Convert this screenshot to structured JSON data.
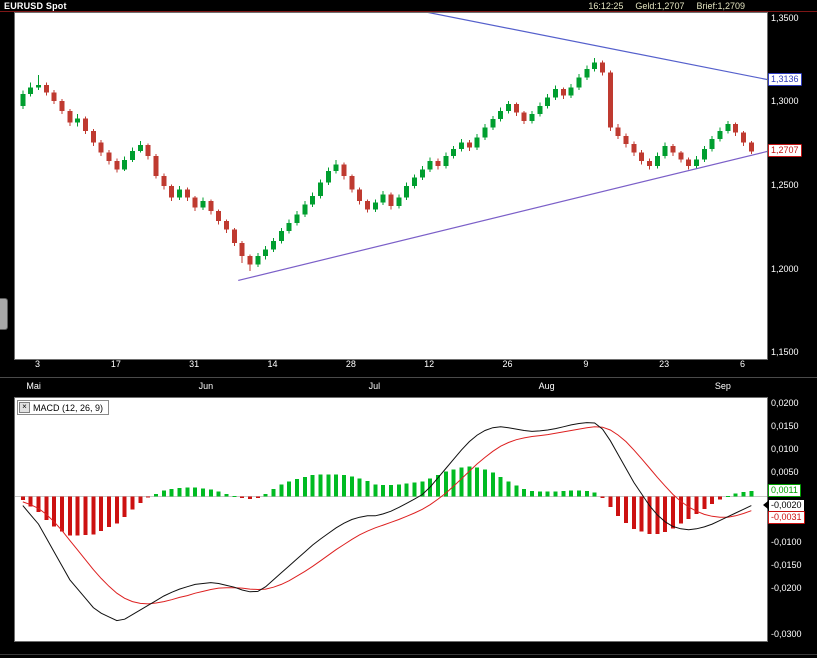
{
  "titlebar": {
    "symbol": "EURUSD Spot",
    "time": "16:12:25",
    "bid_label": "Geld:",
    "bid": "1,2707",
    "ask_label": "Brief:",
    "ask": "1,2709"
  },
  "indicator_box": {
    "close_glyph": "×"
  },
  "colors": {
    "candle_up": "#009e2f",
    "candle_down": "#bf3a30",
    "hist_up": "#00bb22",
    "hist_down": "#cc1111",
    "macd_line": "#101010",
    "signal_line": "#dd2020",
    "zero_line": "#c8c8c8",
    "axis_text": "#ffffff"
  },
  "chart_data": [
    {
      "type": "candlestick",
      "title": "EURUSD Spot",
      "y_axis": {
        "top": 1.3535,
        "bottom": 1.1465,
        "ticks": [
          {
            "v": 1.35,
            "label": "1,3500"
          },
          {
            "v": 1.3,
            "label": "1,3000"
          },
          {
            "v": 1.25,
            "label": "1,2500"
          },
          {
            "v": 1.2,
            "label": "1,2000"
          },
          {
            "v": 1.15,
            "label": "1,1500"
          }
        ]
      },
      "price_markers": [
        {
          "v": 1.3136,
          "label": "1,3136",
          "color": "#2e3bbf"
        },
        {
          "v": 1.2707,
          "label": "1,2707",
          "color": "#c41414"
        }
      ],
      "x_ticks": [
        {
          "i": 2,
          "label": "3"
        },
        {
          "i": 12,
          "label": "17"
        },
        {
          "i": 22,
          "label": "31"
        },
        {
          "i": 32,
          "label": "14"
        },
        {
          "i": 42,
          "label": "28"
        },
        {
          "i": 52,
          "label": "12"
        },
        {
          "i": 62,
          "label": "26"
        },
        {
          "i": 72,
          "label": "9"
        },
        {
          "i": 82,
          "label": "23"
        },
        {
          "i": 92,
          "label": "6"
        }
      ],
      "months": [
        {
          "i": 1.5,
          "label": "Mai"
        },
        {
          "i": 23.5,
          "label": "Jun"
        },
        {
          "i": 45,
          "label": "Jul"
        },
        {
          "i": 67,
          "label": "Aug"
        },
        {
          "i": 89.5,
          "label": "Sep"
        }
      ],
      "trendlines": [
        {
          "from": {
            "d": 51,
            "v": 1.3545
          },
          "to": {
            "d": 96,
            "v": 1.3128
          },
          "color": "#5560cc"
        },
        {
          "from": {
            "d": 27.5,
            "v": 1.1935
          },
          "to": {
            "d": 96,
            "v": 1.2718
          },
          "color": "#7b5fc8"
        }
      ],
      "candles": [
        [
          1.298,
          1.307,
          1.296,
          1.305
        ],
        [
          1.305,
          1.312,
          1.3035,
          1.309
        ],
        [
          1.309,
          1.3165,
          1.3075,
          1.3105
        ],
        [
          1.3105,
          1.312,
          1.304,
          1.306
        ],
        [
          1.306,
          1.3075,
          1.299,
          1.301
        ],
        [
          1.301,
          1.302,
          1.293,
          1.295
        ],
        [
          1.295,
          1.296,
          1.286,
          1.288
        ],
        [
          1.288,
          1.293,
          1.2855,
          1.2905
        ],
        [
          1.2905,
          1.2915,
          1.281,
          1.283
        ],
        [
          1.283,
          1.284,
          1.274,
          1.276
        ],
        [
          1.276,
          1.2775,
          1.268,
          1.27
        ],
        [
          1.27,
          1.2715,
          1.263,
          1.265
        ],
        [
          1.265,
          1.2665,
          1.258,
          1.26
        ],
        [
          1.26,
          1.2675,
          1.259,
          1.2655
        ],
        [
          1.2655,
          1.273,
          1.2645,
          1.271
        ],
        [
          1.271,
          1.277,
          1.27,
          1.2745
        ],
        [
          1.2745,
          1.2755,
          1.266,
          1.268
        ],
        [
          1.268,
          1.269,
          1.2545,
          1.256
        ],
        [
          1.256,
          1.2575,
          1.248,
          1.25
        ],
        [
          1.25,
          1.251,
          1.241,
          1.243
        ],
        [
          1.243,
          1.25,
          1.2415,
          1.248
        ],
        [
          1.248,
          1.249,
          1.241,
          1.243
        ],
        [
          1.243,
          1.244,
          1.235,
          1.237
        ],
        [
          1.237,
          1.243,
          1.2355,
          1.241
        ],
        [
          1.241,
          1.242,
          1.233,
          1.235
        ],
        [
          1.235,
          1.236,
          1.227,
          1.229
        ],
        [
          1.229,
          1.23,
          1.222,
          1.224
        ],
        [
          1.224,
          1.225,
          1.214,
          1.216
        ],
        [
          1.216,
          1.217,
          1.204,
          1.208
        ],
        [
          1.208,
          1.209,
          1.199,
          1.203
        ],
        [
          1.203,
          1.21,
          1.2015,
          1.208
        ],
        [
          1.208,
          1.214,
          1.206,
          1.212
        ],
        [
          1.212,
          1.219,
          1.2105,
          1.217
        ],
        [
          1.217,
          1.225,
          1.2155,
          1.223
        ],
        [
          1.223,
          1.23,
          1.2215,
          1.228
        ],
        [
          1.228,
          1.235,
          1.2265,
          1.233
        ],
        [
          1.233,
          1.241,
          1.2315,
          1.239
        ],
        [
          1.239,
          1.246,
          1.2375,
          1.244
        ],
        [
          1.244,
          1.254,
          1.2425,
          1.252
        ],
        [
          1.252,
          1.261,
          1.2505,
          1.259
        ],
        [
          1.259,
          1.2655,
          1.2575,
          1.263
        ],
        [
          1.263,
          1.264,
          1.254,
          1.256
        ],
        [
          1.256,
          1.257,
          1.246,
          1.248
        ],
        [
          1.248,
          1.249,
          1.239,
          1.241
        ],
        [
          1.241,
          1.242,
          1.234,
          1.236
        ],
        [
          1.236,
          1.242,
          1.2345,
          1.24
        ],
        [
          1.24,
          1.247,
          1.2385,
          1.245
        ],
        [
          1.245,
          1.246,
          1.236,
          1.238
        ],
        [
          1.238,
          1.245,
          1.2365,
          1.243
        ],
        [
          1.243,
          1.252,
          1.2415,
          1.25
        ],
        [
          1.25,
          1.257,
          1.2485,
          1.255
        ],
        [
          1.255,
          1.262,
          1.2535,
          1.26
        ],
        [
          1.26,
          1.267,
          1.2585,
          1.265
        ],
        [
          1.265,
          1.2665,
          1.26,
          1.262
        ],
        [
          1.262,
          1.27,
          1.2605,
          1.268
        ],
        [
          1.268,
          1.274,
          1.2665,
          1.272
        ],
        [
          1.272,
          1.278,
          1.2705,
          1.276
        ],
        [
          1.276,
          1.2775,
          1.271,
          1.273
        ],
        [
          1.273,
          1.281,
          1.2715,
          1.279
        ],
        [
          1.279,
          1.287,
          1.2775,
          1.285
        ],
        [
          1.285,
          1.292,
          1.2835,
          1.29
        ],
        [
          1.29,
          1.297,
          1.2885,
          1.295
        ],
        [
          1.295,
          1.301,
          1.2935,
          1.299
        ],
        [
          1.299,
          1.3,
          1.292,
          1.294
        ],
        [
          1.294,
          1.295,
          1.287,
          1.289
        ],
        [
          1.289,
          1.295,
          1.2875,
          1.293
        ],
        [
          1.293,
          1.3,
          1.2915,
          1.298
        ],
        [
          1.298,
          1.305,
          1.2965,
          1.303
        ],
        [
          1.303,
          1.31,
          1.3015,
          1.308
        ],
        [
          1.308,
          1.309,
          1.302,
          1.304
        ],
        [
          1.304,
          1.311,
          1.3025,
          1.309
        ],
        [
          1.309,
          1.317,
          1.3075,
          1.315
        ],
        [
          1.315,
          1.322,
          1.3135,
          1.32
        ],
        [
          1.32,
          1.3265,
          1.3185,
          1.324
        ],
        [
          1.324,
          1.325,
          1.316,
          1.318
        ],
        [
          1.318,
          1.319,
          1.283,
          1.285
        ],
        [
          1.285,
          1.287,
          1.278,
          1.28
        ],
        [
          1.28,
          1.2815,
          1.273,
          1.275
        ],
        [
          1.275,
          1.2765,
          1.268,
          1.27
        ],
        [
          1.27,
          1.2715,
          1.263,
          1.265
        ],
        [
          1.265,
          1.2665,
          1.26,
          1.262
        ],
        [
          1.262,
          1.27,
          1.2605,
          1.268
        ],
        [
          1.268,
          1.276,
          1.2665,
          1.274
        ],
        [
          1.274,
          1.275,
          1.268,
          1.27
        ],
        [
          1.27,
          1.271,
          1.264,
          1.266
        ],
        [
          1.266,
          1.267,
          1.26,
          1.262
        ],
        [
          1.262,
          1.268,
          1.2605,
          1.266
        ],
        [
          1.266,
          1.274,
          1.2645,
          1.272
        ],
        [
          1.272,
          1.28,
          1.2705,
          1.278
        ],
        [
          1.278,
          1.285,
          1.2765,
          1.283
        ],
        [
          1.283,
          1.289,
          1.2815,
          1.287
        ],
        [
          1.287,
          1.288,
          1.28,
          1.282
        ],
        [
          1.282,
          1.283,
          1.274,
          1.276
        ],
        [
          1.276,
          1.277,
          1.269,
          1.2707
        ]
      ]
    },
    {
      "type": "macd",
      "title": "MACD (12, 26, 9)",
      "params": [
        12,
        26,
        9
      ],
      "y_axis": {
        "top": 0.0212,
        "bottom": -0.0312,
        "ticks": [
          {
            "v": 0.02,
            "label": "0,0200"
          },
          {
            "v": 0.015,
            "label": "0,0150"
          },
          {
            "v": 0.01,
            "label": "0,0100"
          },
          {
            "v": 0.005,
            "label": "0,0050"
          },
          {
            "v": -0.01,
            "label": "-0,0100"
          },
          {
            "v": -0.015,
            "label": "-0,0150"
          },
          {
            "v": -0.02,
            "label": "-0,0200"
          },
          {
            "v": -0.03,
            "label": "-0,0300"
          }
        ]
      },
      "value_boxes": [
        {
          "v": 0.0011,
          "label": "0,0011",
          "color": "#00a000"
        },
        {
          "v": -0.002,
          "label": "-0,0020",
          "color": "#000000"
        },
        {
          "v": -0.0031,
          "label": "-0,0031",
          "color": "#cc1111"
        }
      ],
      "pointer_v": -0.002,
      "macd": [
        -0.002,
        -0.004,
        -0.006,
        -0.009,
        -0.012,
        -0.015,
        -0.018,
        -0.02,
        -0.022,
        -0.024,
        -0.0252,
        -0.026,
        -0.0268,
        -0.0265,
        -0.0255,
        -0.0245,
        -0.0235,
        -0.0225,
        -0.0215,
        -0.0207,
        -0.02,
        -0.0195,
        -0.019,
        -0.0188,
        -0.0186,
        -0.0188,
        -0.0192,
        -0.0196,
        -0.0202,
        -0.0206,
        -0.0205,
        -0.0195,
        -0.018,
        -0.0165,
        -0.015,
        -0.0135,
        -0.012,
        -0.0105,
        -0.0092,
        -0.008,
        -0.0068,
        -0.0058,
        -0.005,
        -0.0045,
        -0.0042,
        -0.0042,
        -0.0038,
        -0.0032,
        -0.0024,
        -0.0015,
        -0.0006,
        0.0004,
        0.002,
        0.004,
        0.006,
        0.008,
        0.01,
        0.0118,
        0.0132,
        0.0142,
        0.0148,
        0.015,
        0.0148,
        0.0145,
        0.0142,
        0.014,
        0.0141,
        0.0143,
        0.0146,
        0.015,
        0.0154,
        0.0157,
        0.0159,
        0.0158,
        0.0145,
        0.012,
        0.009,
        0.006,
        0.003,
        0.0005,
        -0.002,
        -0.004,
        -0.0055,
        -0.0065,
        -0.007,
        -0.0072,
        -0.007,
        -0.0066,
        -0.006,
        -0.0052,
        -0.0044,
        -0.0036,
        -0.0028,
        -0.002
      ],
      "signal": [
        -0.0012,
        -0.0018,
        -0.0026,
        -0.0039,
        -0.0055,
        -0.0074,
        -0.0095,
        -0.0116,
        -0.0137,
        -0.0158,
        -0.0177,
        -0.0194,
        -0.0209,
        -0.022,
        -0.0227,
        -0.0231,
        -0.0232,
        -0.023,
        -0.0227,
        -0.0223,
        -0.0218,
        -0.0214,
        -0.0209,
        -0.0205,
        -0.0201,
        -0.0198,
        -0.0197,
        -0.0197,
        -0.0198,
        -0.02,
        -0.0201,
        -0.02,
        -0.0196,
        -0.019,
        -0.0182,
        -0.0172,
        -0.0162,
        -0.0151,
        -0.0139,
        -0.0127,
        -0.0115,
        -0.0104,
        -0.0093,
        -0.0083,
        -0.0075,
        -0.0068,
        -0.0062,
        -0.0056,
        -0.005,
        -0.0043,
        -0.0036,
        -0.0028,
        -0.0018,
        -0.0006,
        0.0007,
        0.0022,
        0.0038,
        0.0054,
        0.007,
        0.0084,
        0.0097,
        0.0108,
        0.0116,
        0.0122,
        0.0126,
        0.0129,
        0.0131,
        0.0133,
        0.0136,
        0.0139,
        0.0142,
        0.0145,
        0.0148,
        0.015,
        0.0149,
        0.0143,
        0.0132,
        0.0118,
        0.01,
        0.0081,
        0.0061,
        0.0041,
        0.0022,
        0.0004,
        -0.0011,
        -0.0023,
        -0.0032,
        -0.0039,
        -0.0043,
        -0.0045,
        -0.0045,
        -0.0042,
        -0.0037,
        -0.0031
      ]
    }
  ]
}
